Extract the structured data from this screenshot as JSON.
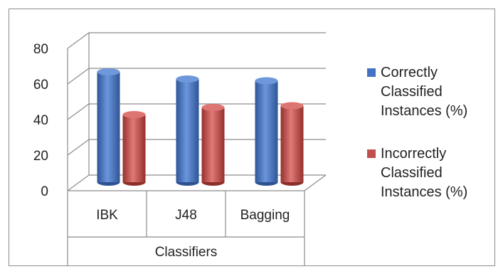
{
  "chart_data": {
    "type": "bar",
    "categories": [
      "IBK",
      "J48",
      "Bagging"
    ],
    "series": [
      {
        "name": "Correctly Classified Instances (%)",
        "values": [
          62,
          58,
          57
        ],
        "color": "#4472c4",
        "legend_lines": [
          "Correctly",
          "Classified",
          "Instances (%)"
        ]
      },
      {
        "name": "Incorrectly Classified Instances (%)",
        "values": [
          38,
          42,
          43
        ],
        "color": "#c0504d",
        "legend_lines": [
          "Incorrectly",
          "Classified",
          "Instances (%)"
        ]
      }
    ],
    "y_ticks": [
      "0",
      "20",
      "40",
      "60",
      "80"
    ],
    "ylim": [
      0,
      80
    ],
    "xlabel": "Classifiers",
    "ylabel": "",
    "title": "",
    "grid": true,
    "legend_position": "right",
    "style": "3d-cylinder"
  }
}
